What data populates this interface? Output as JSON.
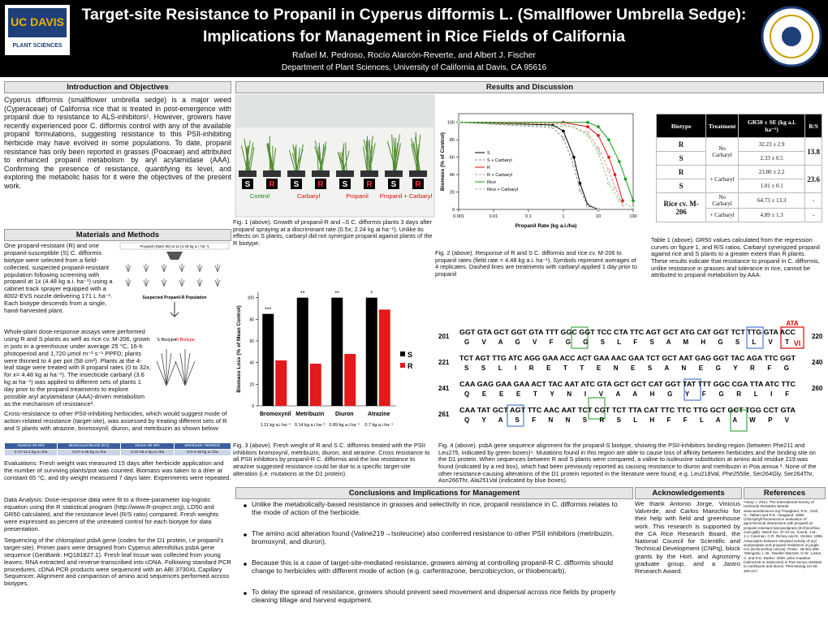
{
  "header": {
    "title_line1": "Target-site Resistance to Propanil in Cyperus difformis L. (Smallflower Umbrella Sedge):",
    "title_line2": "Implications for Management in Rice Fields of California",
    "authors": "Rafael M. Pedroso, Rocío Alarcón-Reverte, and Albert J. Fischer",
    "affiliation": "Department of Plant Sciences, University of California at Davis, CA 95616",
    "logo_line1": "UC DAVIS",
    "logo_line2": "PLANT SCIENCES"
  },
  "intro": {
    "heading": "Introduction and Objectives",
    "text": "Cyperus difformis (smallflower umbrella sedge) is a major weed (Cyperaceae) of California rice that is treated in post-emergence with propanil due to resistance to ALS-inhibitors¹. However, growers have recently experienced poor C. difformis control with any of the available propanil formulations, suggesting resistance to this PSII-inhibiting herbicide may have evolved in some populations. To date, propanil resistance has only been reported in grasses (Poaceae) and attributed to enhanced propanil metabolism by aryl acylamidase (AAA). Confirming the presence of resistance, quantifying its level, and exploring the metabolic basis for it were the objectives of the present work."
  },
  "methods": {
    "heading": "Materials and Methods",
    "selection": "One propanil-resistant (R) and one propanil-susceptible (S) C. difformis biotype were selected from a field-collected, suspected propanil-resistant population following screening with propanil at 1x (4.48 kg a.i. ha⁻¹) using a cabinet track sprayer equipped with a 8002-EVS nozzle delivering 171 L ha⁻¹. Each biotype descends from a single, hand-harvested plant.",
    "diagram_top": "Propanil (Stam 80) at 1x (4.48 kg a.i. ha⁻¹)",
    "diagram_mid": "Suspected Propanil-R Population",
    "diagram_s": "S Biotype",
    "diagram_r": "R Biotype",
    "dose_response": "Whole-plant dose-response assays were performed using R and S plants as well as rice cv. M-206, grown in pots in a greenhouse under average 25 °C, 16-h photoperiod and 1,720 µmol m⁻² s⁻¹ PPFD; plants were thinned to 4 per pot (58 cm²). Plants at the 4- leaf stage were treated with 8 propanil rates (0 to 32x, for x= 4.48 kg ai ha⁻¹). The insecticide carbaryl (3.6 kg ai ha⁻¹) was applied to different sets of plants 1 day prior to the propanil treatments to explore possible aryl acylamidase (AAA)-driven metabolism as the mechanism of resistance².",
    "cross_resistance": "Cross-resistance to other PSII-inhibiting herbicides, which would suggest mode of action-related resistance (target-site), was assessed by treating different sets of R and S plants with atrazine, bromoxynil, diuron, and metribuzin as shown below:",
    "herbicide_table": [
      [
        "Atrazine 80 WG",
        "Bromoxynil Buctril (EC)",
        "Diuron 80 WG",
        "Metribuzin 75DWDG"
      ],
      [
        "0.17-11.2 kg a.i./ha",
        "0.07-4.48 kg a.i./ha",
        "0.22-28.4 kg a.i./ha",
        "0.0-4.48 kg a.i./ha"
      ]
    ],
    "evaluations": "Evaluations: Fresh weight was measured 15 days after herbicide application and the number of surviving plants/pot was counted. Biomass was taken to a drier at constant 65 °C, and dry weight measured 7 days later. Experiments were repeated.",
    "data_analysis": "Data Analysis: Dose-response data were fit to a three-parameter log-logistic equation using the R statistical program (http://www.R-project.org), LD50 and GR50 calculated, and the resistance level (R/S ratio) compared. Fresh weights were expressed as percent of the untreated control for each biotype for data presentation.",
    "sequencing": "Sequencing of the chloroplast psbA gene (codes for the D1 protein, i.e propanil's target-site). Primer pairs were designed from Cyperus alternifolius psbA gene sequence (GenBank: HQ181827.1). Fresh leaf tissue was collected from young leaves; RNA extracted and reverse-transcribed into cDNA. Following standard PCR procedures, cDNA PCR products were sequenced with an ABI 3730XL Capillary Sequencer. Alignment and comparison of amino acid sequences performed across biotypes."
  },
  "results": {
    "heading": "Results and Discussion",
    "fig1": {
      "pot_labels": [
        "S",
        "R",
        "S",
        "R",
        "S",
        "R",
        "S",
        "R"
      ],
      "group_labels": [
        "Control",
        "Carbaryl",
        "Propanil",
        "Propanil + Carbaryl"
      ],
      "caption": "Fig. 1 (above). Growth of propanil-R and –S C. difformis plants 3 days after propanil spraying at a discriminant rate (0.5x; 2.24 kg ai ha⁻¹). Unlike its effects on S plants, carbaryl did not synergize propanil against plants of the R biotype."
    },
    "fig2": {
      "xlabel": "Propanil Rate (kg a.i./ha)",
      "ylabel": "Biomass (% of Control)",
      "log": true,
      "xlim": [
        0.001,
        100
      ],
      "xticks": [
        0.001,
        0.01,
        0.1,
        1,
        10,
        100
      ],
      "ylim": [
        0,
        110
      ],
      "yticks": [
        0,
        20,
        40,
        60,
        80,
        100
      ],
      "series": [
        {
          "name": "S",
          "color": "#000000",
          "x": [
            0.001,
            0.5,
            1,
            2,
            3,
            5,
            10
          ],
          "values": [
            100,
            97,
            90,
            60,
            30,
            5,
            0
          ]
        },
        {
          "name": "S + Carbaryl",
          "color": "#888888",
          "x": [
            0.001,
            0.5,
            1,
            2,
            3,
            5,
            10
          ],
          "values": [
            100,
            94,
            82,
            50,
            22,
            4,
            0
          ]
        },
        {
          "name": "R",
          "color": "#e01010",
          "x": [
            0.001,
            1,
            5,
            10,
            20,
            30,
            50
          ],
          "values": [
            100,
            100,
            95,
            85,
            60,
            40,
            10
          ]
        },
        {
          "name": "R + Carbaryl",
          "color": "#f08080",
          "x": [
            0.001,
            1,
            5,
            10,
            20,
            30,
            50
          ],
          "values": [
            100,
            98,
            88,
            70,
            45,
            25,
            5
          ]
        },
        {
          "name": "Rice",
          "color": "#1a9a1a",
          "x": [
            0.001,
            5,
            10,
            20,
            40,
            60,
            100
          ],
          "values": [
            100,
            100,
            95,
            80,
            55,
            35,
            10
          ]
        },
        {
          "name": "Rice + Carbaryl",
          "color": "#80cc80",
          "x": [
            0.001,
            2,
            5,
            10,
            20,
            40,
            100
          ],
          "values": [
            100,
            95,
            85,
            65,
            30,
            10,
            2
          ]
        }
      ],
      "caption": "Fig. 2 (above). Response of R and S C. difformis and rice cv. M-206 to propanil rates (field rate = 4.48 kg a.i. ha⁻¹). Symbols represent averages of 4 replicates. Dashed lines are treatments with carbaryl applied 1 day prior to propanil"
    },
    "table": {
      "headers": [
        "Biotype",
        "Treatment",
        "GR50 ± SE (kg a.i. ha⁻¹)",
        "R/S"
      ],
      "r": "R",
      "s": "S",
      "no_carbaryl": "No Carbaryl",
      "carbaryl": "+ Carbaryl",
      "r_no": "32.23 ± 2.9",
      "s_no": "2.33 ± 0.5",
      "rs_no": "13.8",
      "r_carb": "23.80 ± 2.2",
      "s_carb": "1.01 ± 0.1",
      "rs_carb": "23.6",
      "rice": "Rice cv. M-206",
      "rice_no": "64.73 ± 13.3",
      "rice_carb": "4.89 ± 1.3",
      "dash": "-",
      "caption": "Table 1 (above). GR50 values calculated from the regression curves on figure 1, and R/S ratios. Carbaryl synergized propanil against rice and S plants to a greater extent than R plants. These results indicate that resistance to propanil in C. difformis, unlike resistance in grasses and tolerance in rice, cannot be attributed to propanil metabolism by AAA."
    },
    "fig3": {
      "ylabel": "Biomass Loss (% of Mean Control)",
      "ylim": [
        0,
        105
      ],
      "yticks": [
        0,
        20,
        40,
        60,
        80,
        100
      ],
      "categories": [
        "Bromoxynil",
        "Metribuzin",
        "Diuron",
        "Atrazine"
      ],
      "doses": [
        "1.11 kg a.i ha⁻¹",
        "0.14 kg a.i ha⁻¹",
        "0.89 kg a.i ha⁻¹",
        "0.7 kg a.i ha⁻¹"
      ],
      "significance": [
        "***",
        "**",
        "**",
        "*"
      ],
      "series": [
        {
          "name": "S",
          "color": "#000000",
          "values": [
            85,
            100,
            100,
            100
          ]
        },
        {
          "name": "R",
          "color": "#e31a1a",
          "values": [
            42,
            39,
            48,
            89
          ]
        }
      ],
      "caption": "Fig. 3 (above). Fresh weight of R and S C. difformis treated with the PSII inhibitors bromoxynil, metribuzin, diuron, and atrazine. Cross resistance to all PSII inhibitors by propanil-R C. difformis and the low resistance to atrazine suggested resistance could be due to a specific target-site alteration (i.e. mutations at the D1 protein)."
    },
    "fig4": {
      "codon_note": "ATA",
      "aa_note": "VI",
      "blocks": [
        {
          "start": "201",
          "end": "220",
          "nt": "GGT GTA GCT GGT GTA TTT GGC GGT TCC CTA TTC AGT GCT ATG CAT GGT TCT TTG GTA ACC",
          "aa": "G V A G V F G G S L F S A M H G S L V T"
        },
        {
          "start": "221",
          "end": "240",
          "nt": "TCT AGT TTG ATC AGG GAA ACC ACT GAA AAC GAA TCT GCT AAT GAG GGT TAC AGA TTC GGT",
          "aa": "S S L I R E T T E N E S A N E G Y R F G"
        },
        {
          "start": "241",
          "end": "260",
          "nt": "CAA GAG GAA GAA ACT TAC AAT ATC GTA GCT GCT CAT GGT TAT TTT GGC CGA TTA ATC TTC",
          "aa": "Q E E E T Y N I V A A H G Y F G R L I F"
        },
        {
          "start": "261",
          "end": null,
          "nt": "CAA TAT GCT AGT TTC AAC AAT TCT CGT TCT TTA CAT TTC TTC TTG GCT GCT TGG CCT GTA",
          "aa": "Q Y A S F N N S R S L H F F L A A W P V"
        }
      ],
      "caption": "Fig. 4 (above). psbA gene sequence alignment for the propanil-S biotype, showing the PSII-inhibitors binding region (between Phe211 and Leu275, indicated by green boxes)⁴. Mutations found in this region are able to cause loss of affinity between herbicides and the binding site on the D1 protein. When sequences between R and S plants were compared, a valine to isoleucine substitution at amino acid residue 219 was found (indicated by a red box), which had been previously reported as causing resistance to diuron and metribuzin in Poa annua ³. None of the other resistance-causing alterations of the D1 protein reported in the literature were found, e.g. Leu218Val, Phe255Ile, Ser264Gly, Ser264Thr, Asn266Thr, Ala251Val (indicated by blue boxes)."
    }
  },
  "conclusions": {
    "heading": "Conclusions and Implications for Management",
    "bullets": [
      "Unlike the metabolically-based resistance in grasses and selectivity in rice, propanil resistance in C. difformis relates to the mode of action of the herbicide.",
      "The amino acid alteration found (Valine219→Isoleucine) also conferred resistance to other PSII inhibitors (metribuzin, bromoxynil, and diuron).",
      "Because this is a case of target-site-mediated resistance, growers aiming at controlling propanil-R C. difformis should change to herbicides with different mode of action (e.g. carfentrazone, benzobicyclon, or thiobencarb).",
      "To delay the spread of resistance, growers should prevent seed movement and dispersal across rice fields by properly cleaning tillage and harvest equipment."
    ]
  },
  "acknowledgements": {
    "heading": "Acknowledgements",
    "text": "We thank Antonio Jorge, Vinicius Valverde, and Carlos Marochio for their help with field and greenhouse work. This research is supported by the CA Rice Research Board, the National Council for Scientific and Technical Development (CNPq), block grants by the Hort. and Agronomy graduate group, and a Jastro Research Award."
  },
  "references": {
    "heading": "References",
    "text": "¹Hoop, I. 2014. The International Survey of Herbicide Resistant Weeds. www.weedscience.org ²Hoagland, R.E., Graf, G., Talbert and R.E. Hoagland. 1998. Chlorophyll fluorescence evaluation of agrochemical interactions with propanil on propanil-resistant barnyardgrass (Echinochloa crus-galli). Weed Sci. 47:10-16. ³Lamb, J.M., J.J. Coleman, C.R. Richey and E. Vorster. 1996. Association between elevated activity of aryl acylamidase and propanil resistance in jungle rice (Echinochloa colona). Pestic. 46:361-366. ⁴Mengistu, L.W., Mueller-Warrant, G.W., Liston, A. and R.E. Barker. 2000. psbA mutation (valine219 to isoleucine) in Poa annua resistant to metribuzin and diuron. Pest Manag Sci 56: 209-217."
  }
}
